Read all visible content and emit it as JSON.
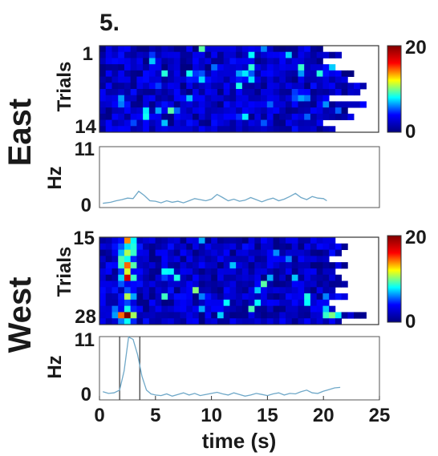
{
  "panel_label": "5.",
  "chart_data": [
    {
      "type": "heatmap",
      "group_label": "East",
      "ylabel": "Trials",
      "trial_first": "1",
      "trial_last": "14",
      "n_trials": 14,
      "n_bins": 45,
      "xlim": [
        0,
        25
      ],
      "trial_end_s": [
        20.5,
        22.0,
        20.5,
        21.5,
        23.0,
        22.5,
        24.0,
        23.5,
        21.0,
        24.0,
        22.5,
        23.0,
        20.5,
        21.5
      ],
      "hotspots": [
        {
          "t": 2.0,
          "trial": 9,
          "v": 6
        },
        {
          "t": 9.0,
          "trial": 5,
          "v": 5
        },
        {
          "t": 13.0,
          "trial": 4,
          "v": 5
        },
        {
          "t": 18.0,
          "trial": 8,
          "v": 5
        },
        {
          "t": 22.5,
          "trial": 1,
          "v": 6
        }
      ],
      "colorbar": {
        "colors": [
          "#00007f",
          "#0000ff",
          "#00ffff",
          "#ffff00",
          "#ff0000",
          "#7f0000"
        ],
        "min": 0,
        "max": 20,
        "min_label": "0",
        "max_label": "20"
      }
    },
    {
      "type": "line",
      "ylabel": "Hz",
      "ylim": [
        0,
        11
      ],
      "ytick_labels": [
        "0",
        "11"
      ],
      "xlim": [
        0,
        25
      ],
      "color": "#6fa8c8",
      "x": [
        0.3,
        1,
        1.5,
        2,
        2.5,
        3,
        3.5,
        4,
        4.5,
        5,
        5.5,
        6,
        6.5,
        7,
        7.5,
        8,
        8.5,
        9,
        9.5,
        10,
        10.5,
        11,
        11.5,
        12,
        12.5,
        13,
        13.5,
        14,
        14.5,
        15,
        15.5,
        16,
        16.5,
        17,
        17.5,
        18,
        18.5,
        19,
        19.5,
        20,
        20.3
      ],
      "values": [
        0.5,
        0.7,
        1.0,
        1.2,
        1.5,
        1.4,
        2.8,
        2.0,
        1.0,
        0.9,
        0.6,
        1.0,
        0.7,
        0.9,
        0.6,
        1.0,
        1.4,
        1.2,
        1.0,
        1.3,
        2.2,
        1.6,
        1.0,
        1.3,
        0.9,
        1.1,
        1.6,
        1.2,
        0.8,
        1.2,
        1.5,
        1.0,
        1.3,
        1.8,
        2.4,
        1.6,
        1.2,
        1.8,
        1.5,
        1.4,
        1.0
      ]
    },
    {
      "type": "heatmap",
      "group_label": "West",
      "ylabel": "Trials",
      "trial_first": "15",
      "trial_last": "28",
      "n_trials": 14,
      "n_bins": 45,
      "xlim": [
        0,
        25
      ],
      "trial_end_s": [
        21.5,
        22.5,
        22.0,
        21.0,
        22.5,
        21.5,
        22.0,
        22.5,
        21.5,
        22.5,
        21.0,
        21.5,
        24.0,
        22.0
      ],
      "hotspots": [
        {
          "t": 2.5,
          "trial": 0,
          "v": 9
        },
        {
          "t": 2.5,
          "trial": 2,
          "v": 10
        },
        {
          "t": 2.5,
          "trial": 4,
          "v": 16
        },
        {
          "t": 2.5,
          "trial": 6,
          "v": 14
        },
        {
          "t": 2.5,
          "trial": 9,
          "v": 11
        },
        {
          "t": 2.5,
          "trial": 12,
          "v": 18
        },
        {
          "t": 22.5,
          "trial": 8,
          "v": 7
        }
      ],
      "colorbar": {
        "colors": [
          "#00007f",
          "#0000ff",
          "#00ffff",
          "#ffff00",
          "#ff0000",
          "#7f0000"
        ],
        "min": 0,
        "max": 20,
        "min_label": "0",
        "max_label": "20"
      }
    },
    {
      "type": "line",
      "ylabel": "Hz",
      "ylim": [
        0,
        11
      ],
      "ytick_labels": [
        "0",
        "11"
      ],
      "xlim": [
        0,
        25
      ],
      "xlabel": "time (s)",
      "xticks": [
        0,
        5,
        10,
        15,
        20,
        25
      ],
      "xtick_labels": [
        "0",
        "5",
        "10",
        "15",
        "20",
        "25"
      ],
      "window_s": [
        1.8,
        3.6
      ],
      "color": "#6fa8c8",
      "x": [
        0.3,
        0.8,
        1.3,
        1.8,
        2.2,
        2.6,
        3.0,
        3.4,
        3.8,
        4.2,
        4.6,
        5,
        5.5,
        6,
        6.5,
        7,
        7.5,
        8,
        8.5,
        9,
        9.5,
        10,
        10.5,
        11,
        11.5,
        12,
        12.5,
        13,
        13.5,
        14,
        14.5,
        15,
        15.5,
        16,
        16.5,
        17,
        17.5,
        18,
        18.5,
        19,
        19.5,
        20,
        20.5,
        21,
        21.5
      ],
      "values": [
        1.2,
        0.9,
        1.0,
        1.5,
        5.0,
        11.2,
        10.8,
        8.0,
        4.0,
        1.5,
        0.8,
        0.6,
        0.5,
        0.8,
        0.4,
        0.7,
        1.0,
        0.6,
        0.9,
        0.5,
        0.7,
        0.9,
        1.1,
        0.8,
        0.6,
        1.0,
        0.7,
        0.4,
        0.6,
        0.9,
        0.7,
        0.5,
        0.8,
        1.0,
        0.6,
        0.9,
        0.8,
        1.2,
        1.5,
        1.0,
        0.9,
        1.3,
        1.6,
        1.9,
        2.0
      ]
    }
  ]
}
